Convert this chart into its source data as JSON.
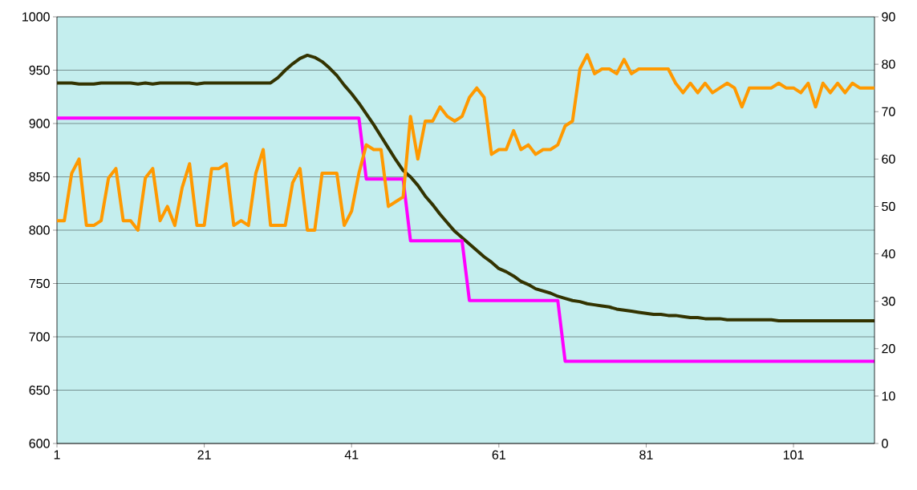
{
  "chart_data": {
    "type": "line",
    "x": [
      1,
      2,
      3,
      4,
      5,
      6,
      7,
      8,
      9,
      10,
      11,
      12,
      13,
      14,
      15,
      16,
      17,
      18,
      19,
      20,
      21,
      22,
      23,
      24,
      25,
      26,
      27,
      28,
      29,
      30,
      31,
      32,
      33,
      34,
      35,
      36,
      37,
      38,
      39,
      40,
      41,
      42,
      43,
      44,
      45,
      46,
      47,
      48,
      49,
      50,
      51,
      52,
      53,
      54,
      55,
      56,
      57,
      58,
      59,
      60,
      61,
      62,
      63,
      64,
      65,
      66,
      67,
      68,
      69,
      70,
      71,
      72,
      73,
      74,
      75,
      76,
      77,
      78,
      79,
      80,
      81,
      82,
      83,
      84,
      85,
      86,
      87,
      88,
      89,
      90,
      91,
      92,
      93,
      94,
      95,
      96,
      97,
      98,
      99,
      100,
      101,
      102,
      103,
      104,
      105,
      106,
      107,
      108,
      109,
      110,
      111,
      112
    ],
    "series": [
      {
        "color": "#333300",
        "values": [
          938,
          938,
          938,
          937,
          937,
          937,
          938,
          938,
          938,
          938,
          938,
          937,
          938,
          937,
          938,
          938,
          938,
          938,
          938,
          937,
          938,
          938,
          938,
          938,
          938,
          938,
          938,
          938,
          938,
          938,
          943,
          950,
          956,
          961,
          964,
          962,
          958,
          952,
          945,
          936,
          928,
          919,
          909,
          899,
          888,
          877,
          866,
          856,
          850,
          842,
          832,
          824,
          815,
          807,
          799,
          793,
          787,
          781,
          775,
          770,
          764,
          761,
          757,
          752,
          749,
          745,
          743,
          741,
          738,
          736,
          734,
          733,
          731,
          730,
          729,
          728,
          726,
          725,
          724,
          723,
          722,
          721,
          721,
          720,
          720,
          719,
          718,
          718,
          717,
          717,
          717,
          716,
          716,
          716,
          716,
          716,
          716,
          716,
          715,
          715,
          715,
          715,
          715,
          715,
          715,
          715,
          715,
          715,
          715,
          715,
          715,
          715
        ]
      },
      {
        "color": "#ff00ff",
        "values": [
          905,
          905,
          905,
          905,
          905,
          905,
          905,
          905,
          905,
          905,
          905,
          905,
          905,
          905,
          905,
          905,
          905,
          905,
          905,
          905,
          905,
          905,
          905,
          905,
          905,
          905,
          905,
          905,
          905,
          905,
          905,
          905,
          905,
          905,
          905,
          905,
          905,
          905,
          905,
          905,
          905,
          905,
          848,
          848,
          848,
          848,
          848,
          848,
          790,
          790,
          790,
          790,
          790,
          790,
          790,
          790,
          734,
          734,
          734,
          734,
          734,
          734,
          734,
          734,
          734,
          734,
          734,
          734,
          734,
          677,
          677,
          677,
          677,
          677,
          677,
          677,
          677,
          677,
          677,
          677,
          677,
          677,
          677,
          677,
          677,
          677,
          677,
          677,
          677,
          677,
          677,
          677,
          677,
          677,
          677,
          677,
          677,
          677,
          677,
          677,
          677,
          677,
          677,
          677,
          677,
          677,
          677,
          677,
          677,
          677,
          677,
          677
        ]
      },
      {
        "color": "#ff9900",
        "axis": "y2",
        "values": [
          47,
          47,
          57,
          60,
          46,
          46,
          47,
          56,
          58,
          47,
          47,
          45,
          56,
          58,
          47,
          50,
          46,
          54,
          59,
          46,
          46,
          58,
          58,
          59,
          46,
          47,
          46,
          57,
          62,
          46,
          46,
          46,
          55,
          58,
          45,
          45,
          57,
          57,
          57,
          46,
          49,
          57,
          63,
          62,
          62,
          50,
          51,
          52,
          69,
          60,
          68,
          68,
          71,
          69,
          68,
          69,
          73,
          75,
          73,
          61,
          62,
          62,
          66,
          62,
          63,
          61,
          62,
          62,
          63,
          67,
          68,
          79,
          82,
          78,
          79,
          79,
          78,
          81,
          78,
          79,
          79,
          79,
          79,
          79,
          76,
          74,
          76,
          74,
          76,
          74,
          75,
          76,
          75,
          71,
          75,
          75,
          75,
          75,
          76,
          75,
          75,
          74,
          76,
          71,
          76,
          74,
          76,
          74,
          76,
          75,
          75,
          75
        ]
      }
    ],
    "xlim": [
      1,
      112
    ],
    "xticks": [
      1,
      21,
      41,
      61,
      81,
      101
    ],
    "ylim": [
      600,
      1000
    ],
    "yticks": [
      600,
      650,
      700,
      750,
      800,
      850,
      900,
      950,
      1000
    ],
    "y2lim": [
      0,
      90
    ],
    "y2ticks": [
      0,
      10,
      20,
      30,
      40,
      50,
      60,
      70,
      80,
      90
    ],
    "grid": "y"
  }
}
